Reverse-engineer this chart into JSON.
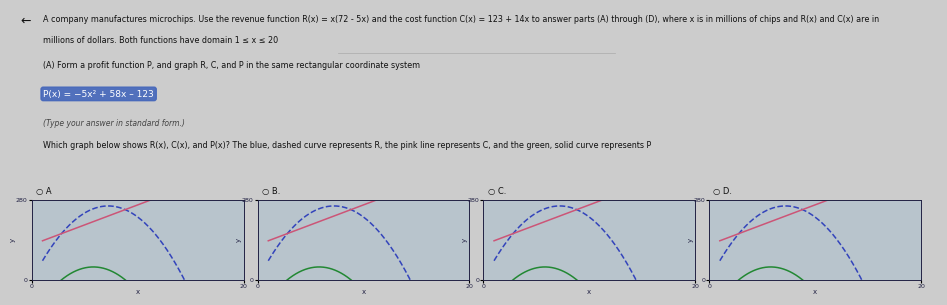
{
  "fig_bg": "#cccccc",
  "graph_bg": "#b8c4cc",
  "grid_color": "#8899aa",
  "R_color": "#3344bb",
  "C_color": "#cc5577",
  "P_color": "#228833",
  "axis_color": "#222244",
  "text_color": "#111111",
  "highlight_facecolor": "#4466bb",
  "highlight_textcolor": "#ffffff",
  "top_text_line1": "A company manufactures microchips. Use the revenue function R(x) = x(72 - 5x) and the cost function C(x) = 123 + 14x to answer parts (A) through (D), where x is in millions of chips and R(x) and C(x) are in",
  "top_text_line2": "millions of dollars. Both functions have domain 1 ≤ x ≤ 20",
  "part_a_label": "(A) Form a profit function P, and graph R, C, and P in the same rectangular coordinate system",
  "profit_eq": "P(x) = −5x² + 58x – 123",
  "type_answer": "(Type your answer in standard form.)",
  "which_graph_text": "Which graph below shows R(x), C(x), and P(x)? The blue, dashed curve represents R, the pink line represents C, and the green, solid curve represents P",
  "option_labels": [
    "○ A",
    "○ B.",
    "○ C.",
    "○ D."
  ],
  "xmin": 0,
  "xmax": 20,
  "ymin": 0,
  "ymax": 280,
  "variants": [
    "A",
    "B",
    "C",
    "D"
  ]
}
